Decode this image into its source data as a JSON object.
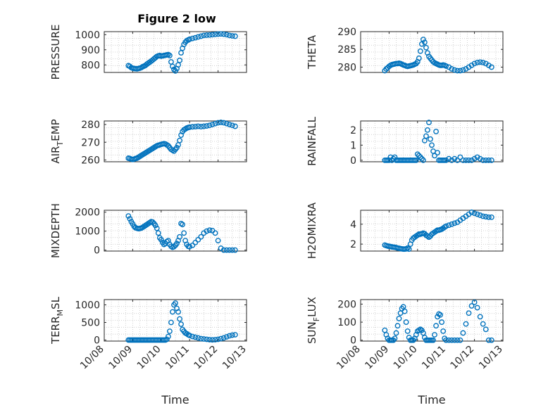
{
  "figure_title": "Figure 2 low",
  "colors": {
    "marker": "#0072BD",
    "axes": "#262626",
    "grid": "#c8c8c8"
  },
  "chart_data": [
    {
      "type": "scatter",
      "ylabel": "PRESSURE",
      "yticks": [
        "800",
        "900",
        "1000"
      ],
      "ylim": [
        750,
        1020
      ],
      "xlim": [
        "10/08",
        "10/13"
      ],
      "grid": true,
      "x": [
        8.85,
        8.9,
        8.95,
        9.0,
        9.05,
        9.1,
        9.15,
        9.2,
        9.25,
        9.3,
        9.35,
        9.4,
        9.45,
        9.5,
        9.55,
        9.6,
        9.65,
        9.7,
        9.75,
        9.8,
        9.85,
        9.9,
        9.95,
        10.0,
        10.05,
        10.1,
        10.15,
        10.2,
        10.25,
        10.3,
        10.35,
        10.4,
        10.45,
        10.5,
        10.55,
        10.6,
        10.65,
        10.7,
        10.75,
        10.8,
        10.85,
        10.9,
        10.95,
        11.0,
        11.1,
        11.2,
        11.3,
        11.4,
        11.5,
        11.6,
        11.7,
        11.8,
        11.9,
        12.0,
        12.1,
        12.2,
        12.3,
        12.4,
        12.5,
        12.6
      ],
      "y": [
        795,
        790,
        782,
        778,
        776,
        775,
        774,
        776,
        778,
        782,
        788,
        792,
        797,
        805,
        812,
        818,
        825,
        832,
        840,
        848,
        856,
        860,
        862,
        858,
        860,
        862,
        864,
        866,
        868,
        862,
        820,
        790,
        770,
        760,
        775,
        800,
        830,
        880,
        910,
        935,
        950,
        960,
        965,
        970,
        975,
        980,
        985,
        990,
        995,
        997,
        998,
        1000,
        1002,
        1004,
        1005,
        1003,
        1000,
        995,
        992,
        990
      ]
    },
    {
      "type": "scatter",
      "ylabel": "THETA",
      "yticks": [
        "280",
        "285",
        "290"
      ],
      "ylim": [
        278.5,
        290
      ],
      "xlim": [
        "10/08",
        "10/13"
      ],
      "grid": true,
      "x": [
        8.85,
        8.9,
        8.95,
        9.0,
        9.05,
        9.1,
        9.15,
        9.2,
        9.25,
        9.3,
        9.35,
        9.4,
        9.45,
        9.5,
        9.55,
        9.6,
        9.65,
        9.7,
        9.75,
        9.8,
        9.85,
        9.9,
        9.95,
        10.0,
        10.05,
        10.1,
        10.15,
        10.2,
        10.25,
        10.3,
        10.35,
        10.4,
        10.45,
        10.5,
        10.55,
        10.6,
        10.65,
        10.7,
        10.75,
        10.8,
        10.85,
        10.9,
        10.95,
        11.0,
        11.1,
        11.2,
        11.3,
        11.4,
        11.5,
        11.6,
        11.7,
        11.8,
        11.9,
        12.0,
        12.1,
        12.2,
        12.3,
        12.4,
        12.5,
        12.6
      ],
      "y": [
        279.0,
        279.5,
        279.8,
        280.2,
        280.5,
        280.7,
        280.8,
        280.9,
        281.0,
        281.0,
        281.1,
        281.0,
        280.8,
        280.6,
        280.5,
        280.3,
        280.2,
        280.3,
        280.4,
        280.5,
        280.6,
        280.8,
        281.0,
        281.5,
        282.5,
        284.5,
        286.5,
        287.8,
        287.0,
        285.5,
        284.0,
        283.0,
        282.5,
        282.0,
        281.5,
        281.2,
        281.0,
        280.8,
        280.6,
        280.5,
        280.5,
        280.6,
        280.5,
        280.3,
        280.0,
        279.5,
        279.2,
        279.0,
        279.0,
        279.2,
        279.5,
        280.0,
        280.5,
        281.0,
        281.3,
        281.4,
        281.3,
        281.0,
        280.5,
        280.0
      ]
    },
    {
      "type": "scatter",
      "ylabel": "AIR_TEMP",
      "yticks": [
        "260",
        "270",
        "280"
      ],
      "ylim": [
        259,
        282
      ],
      "xlim": [
        "10/08",
        "10/13"
      ],
      "grid": true,
      "x": [
        8.85,
        8.9,
        8.95,
        9.0,
        9.05,
        9.1,
        9.15,
        9.2,
        9.25,
        9.3,
        9.35,
        9.4,
        9.45,
        9.5,
        9.55,
        9.6,
        9.65,
        9.7,
        9.75,
        9.8,
        9.85,
        9.9,
        9.95,
        10.0,
        10.05,
        10.1,
        10.15,
        10.2,
        10.25,
        10.3,
        10.35,
        10.4,
        10.45,
        10.5,
        10.55,
        10.6,
        10.65,
        10.7,
        10.75,
        10.8,
        10.85,
        10.9,
        10.95,
        11.0,
        11.1,
        11.2,
        11.3,
        11.4,
        11.5,
        11.6,
        11.7,
        11.8,
        11.9,
        12.0,
        12.1,
        12.2,
        12.3,
        12.4,
        12.5,
        12.6
      ],
      "y": [
        261.0,
        260.8,
        260.5,
        260.3,
        260.5,
        260.8,
        261.0,
        261.5,
        262.0,
        262.5,
        263.0,
        263.5,
        264.0,
        264.5,
        265.0,
        265.5,
        266.0,
        266.5,
        267.0,
        267.5,
        268.0,
        268.3,
        268.5,
        268.8,
        269.0,
        269.2,
        269.0,
        268.5,
        268.0,
        267.0,
        266.0,
        265.5,
        265.0,
        266.0,
        267.0,
        268.5,
        271.0,
        274.0,
        276.0,
        277.0,
        277.5,
        278.0,
        278.3,
        278.5,
        278.7,
        278.8,
        279.0,
        278.8,
        279.0,
        279.2,
        279.5,
        280.0,
        280.5,
        281.0,
        281.2,
        281.0,
        280.5,
        280.0,
        279.5,
        279.0
      ]
    },
    {
      "type": "scatter",
      "ylabel": "RAINFALL",
      "yticks": [
        "0",
        "1",
        "2"
      ],
      "ylim": [
        -0.1,
        2.6
      ],
      "xlim": [
        "10/08",
        "10/13"
      ],
      "grid": true,
      "x": [
        8.85,
        8.9,
        8.95,
        9.0,
        9.05,
        9.1,
        9.15,
        9.2,
        9.25,
        9.3,
        9.35,
        9.4,
        9.45,
        9.5,
        9.55,
        9.6,
        9.65,
        9.7,
        9.75,
        9.8,
        9.85,
        9.9,
        9.95,
        10.0,
        10.05,
        10.1,
        10.15,
        10.2,
        10.25,
        10.3,
        10.35,
        10.4,
        10.45,
        10.5,
        10.55,
        10.6,
        10.65,
        10.7,
        10.75,
        10.8,
        10.85,
        10.9,
        10.95,
        11.0,
        11.1,
        11.2,
        11.3,
        11.4,
        11.5,
        11.6,
        11.7,
        11.8,
        11.9,
        12.0,
        12.1,
        12.2,
        12.3,
        12.4,
        12.5,
        12.6
      ],
      "y": [
        0,
        0,
        0,
        0,
        0.2,
        0,
        0.1,
        0.2,
        0,
        0,
        0,
        0,
        0,
        0,
        0,
        0,
        0,
        0,
        0,
        0,
        0,
        0,
        0,
        0.4,
        0.3,
        0.2,
        0.1,
        0,
        1.3,
        1.6,
        2.0,
        2.5,
        1.4,
        1.0,
        0.6,
        0.3,
        1.9,
        0.5,
        0,
        0,
        0,
        0,
        0,
        0,
        0.1,
        0,
        0.1,
        0,
        0.2,
        0,
        0,
        0,
        0,
        0.1,
        0.2,
        0.1,
        0,
        0,
        0,
        0
      ]
    },
    {
      "type": "scatter",
      "ylabel": "MIXDEPTH",
      "yticks": [
        "0",
        "1000",
        "2000"
      ],
      "ylim": [
        -50,
        2100
      ],
      "xlim": [
        "10/08",
        "10/13"
      ],
      "grid": true,
      "x": [
        8.85,
        8.9,
        8.95,
        9.0,
        9.05,
        9.1,
        9.15,
        9.2,
        9.25,
        9.3,
        9.35,
        9.4,
        9.45,
        9.5,
        9.55,
        9.6,
        9.65,
        9.7,
        9.75,
        9.8,
        9.85,
        9.9,
        9.95,
        10.0,
        10.05,
        10.1,
        10.15,
        10.2,
        10.25,
        10.3,
        10.35,
        10.4,
        10.45,
        10.5,
        10.55,
        10.6,
        10.65,
        10.7,
        10.75,
        10.8,
        10.85,
        10.9,
        10.95,
        11.0,
        11.1,
        11.2,
        11.3,
        11.4,
        11.5,
        11.6,
        11.7,
        11.8,
        11.9,
        12.0,
        12.1,
        12.2,
        12.3,
        12.4,
        12.5,
        12.6
      ],
      "y": [
        1800,
        1650,
        1500,
        1380,
        1250,
        1180,
        1150,
        1130,
        1140,
        1160,
        1200,
        1250,
        1300,
        1350,
        1400,
        1450,
        1500,
        1480,
        1400,
        1300,
        1150,
        900,
        650,
        550,
        400,
        300,
        350,
        450,
        500,
        300,
        200,
        150,
        180,
        250,
        350,
        500,
        700,
        1400,
        1350,
        900,
        500,
        300,
        200,
        180,
        250,
        400,
        550,
        700,
        900,
        1000,
        1050,
        1030,
        900,
        500,
        100,
        0,
        0,
        0,
        0,
        0
      ]
    },
    {
      "type": "scatter",
      "ylabel": "H2OMIXRA",
      "yticks": [
        "2",
        "4"
      ],
      "ylim": [
        1.3,
        5.4
      ],
      "xlim": [
        "10/08",
        "10/13"
      ],
      "grid": true,
      "x": [
        8.85,
        8.9,
        8.95,
        9.0,
        9.05,
        9.1,
        9.15,
        9.2,
        9.25,
        9.3,
        9.35,
        9.4,
        9.45,
        9.5,
        9.55,
        9.6,
        9.65,
        9.7,
        9.75,
        9.8,
        9.85,
        9.9,
        9.95,
        10.0,
        10.05,
        10.1,
        10.15,
        10.2,
        10.25,
        10.3,
        10.35,
        10.4,
        10.45,
        10.5,
        10.55,
        10.6,
        10.65,
        10.7,
        10.75,
        10.8,
        10.85,
        10.9,
        10.95,
        11.0,
        11.1,
        11.2,
        11.3,
        11.4,
        11.5,
        11.6,
        11.7,
        11.8,
        11.9,
        12.0,
        12.1,
        12.2,
        12.3,
        12.4,
        12.5,
        12.6
      ],
      "y": [
        1.9,
        1.85,
        1.8,
        1.78,
        1.75,
        1.72,
        1.7,
        1.68,
        1.65,
        1.6,
        1.58,
        1.55,
        1.52,
        1.5,
        1.5,
        1.52,
        1.6,
        1.5,
        2.0,
        2.4,
        2.6,
        2.7,
        2.8,
        2.9,
        3.0,
        3.0,
        3.05,
        3.1,
        3.05,
        2.9,
        2.8,
        2.7,
        2.8,
        3.0,
        3.1,
        3.2,
        3.3,
        3.4,
        3.4,
        3.45,
        3.5,
        3.6,
        3.7,
        3.8,
        3.9,
        4.0,
        4.1,
        4.2,
        4.4,
        4.6,
        4.8,
        5.0,
        5.2,
        5.1,
        5.0,
        4.9,
        4.8,
        4.75,
        4.7,
        4.7
      ]
    },
    {
      "type": "scatter",
      "ylabel": "TERR_MSL",
      "yticks": [
        "0",
        "500",
        "1000"
      ],
      "ylim": [
        -30,
        1150
      ],
      "xlim": [
        "10/08",
        "10/13"
      ],
      "grid": true,
      "x": [
        8.85,
        8.9,
        8.95,
        9.0,
        9.05,
        9.1,
        9.15,
        9.2,
        9.25,
        9.3,
        9.35,
        9.4,
        9.45,
        9.5,
        9.55,
        9.6,
        9.65,
        9.7,
        9.75,
        9.8,
        9.85,
        9.9,
        9.95,
        10.0,
        10.05,
        10.1,
        10.15,
        10.2,
        10.25,
        10.3,
        10.35,
        10.4,
        10.45,
        10.5,
        10.55,
        10.6,
        10.65,
        10.7,
        10.75,
        10.8,
        10.85,
        10.9,
        10.95,
        11.0,
        11.1,
        11.2,
        11.3,
        11.4,
        11.5,
        11.6,
        11.7,
        11.8,
        11.9,
        12.0,
        12.1,
        12.2,
        12.3,
        12.4,
        12.5,
        12.6
      ],
      "y": [
        0,
        0,
        0,
        0,
        0,
        0,
        0,
        0,
        0,
        0,
        0,
        0,
        0,
        0,
        0,
        0,
        0,
        0,
        0,
        0,
        0,
        0,
        0,
        0,
        0,
        0,
        0,
        20,
        100,
        250,
        500,
        800,
        1000,
        1050,
        900,
        800,
        600,
        450,
        300,
        250,
        200,
        180,
        150,
        130,
        100,
        80,
        60,
        40,
        30,
        20,
        10,
        5,
        10,
        20,
        40,
        60,
        90,
        120,
        140,
        150
      ]
    },
    {
      "type": "scatter",
      "ylabel": "SUN_FLUX",
      "yticks": [
        "0",
        "100",
        "200"
      ],
      "ylim": [
        -5,
        225
      ],
      "xlim": [
        "10/08",
        "10/13"
      ],
      "xticks": [
        "10/08",
        "10/09",
        "10/10",
        "10/11",
        "10/12",
        "10/13"
      ],
      "xlabel": "Time",
      "grid": true,
      "x": [
        8.85,
        8.9,
        8.95,
        9.0,
        9.05,
        9.1,
        9.15,
        9.2,
        9.25,
        9.3,
        9.35,
        9.4,
        9.45,
        9.5,
        9.55,
        9.6,
        9.65,
        9.7,
        9.75,
        9.8,
        9.85,
        9.9,
        9.95,
        10.0,
        10.05,
        10.1,
        10.15,
        10.2,
        10.25,
        10.3,
        10.35,
        10.4,
        10.45,
        10.5,
        10.55,
        10.6,
        10.65,
        10.7,
        10.75,
        10.8,
        10.85,
        10.9,
        10.95,
        11.0,
        11.1,
        11.2,
        11.3,
        11.4,
        11.5,
        11.6,
        11.7,
        11.8,
        11.9,
        12.0,
        12.1,
        12.2,
        12.3,
        12.4,
        12.5,
        12.6
      ],
      "y": [
        55,
        30,
        10,
        0,
        0,
        0,
        0,
        10,
        40,
        80,
        120,
        150,
        175,
        185,
        160,
        100,
        50,
        15,
        0,
        0,
        0,
        10,
        30,
        50,
        55,
        60,
        55,
        40,
        15,
        0,
        0,
        0,
        0,
        0,
        0,
        30,
        80,
        130,
        145,
        140,
        100,
        50,
        10,
        0,
        0,
        0,
        0,
        0,
        0,
        40,
        90,
        150,
        190,
        210,
        180,
        130,
        90,
        60,
        0,
        0
      ]
    }
  ]
}
